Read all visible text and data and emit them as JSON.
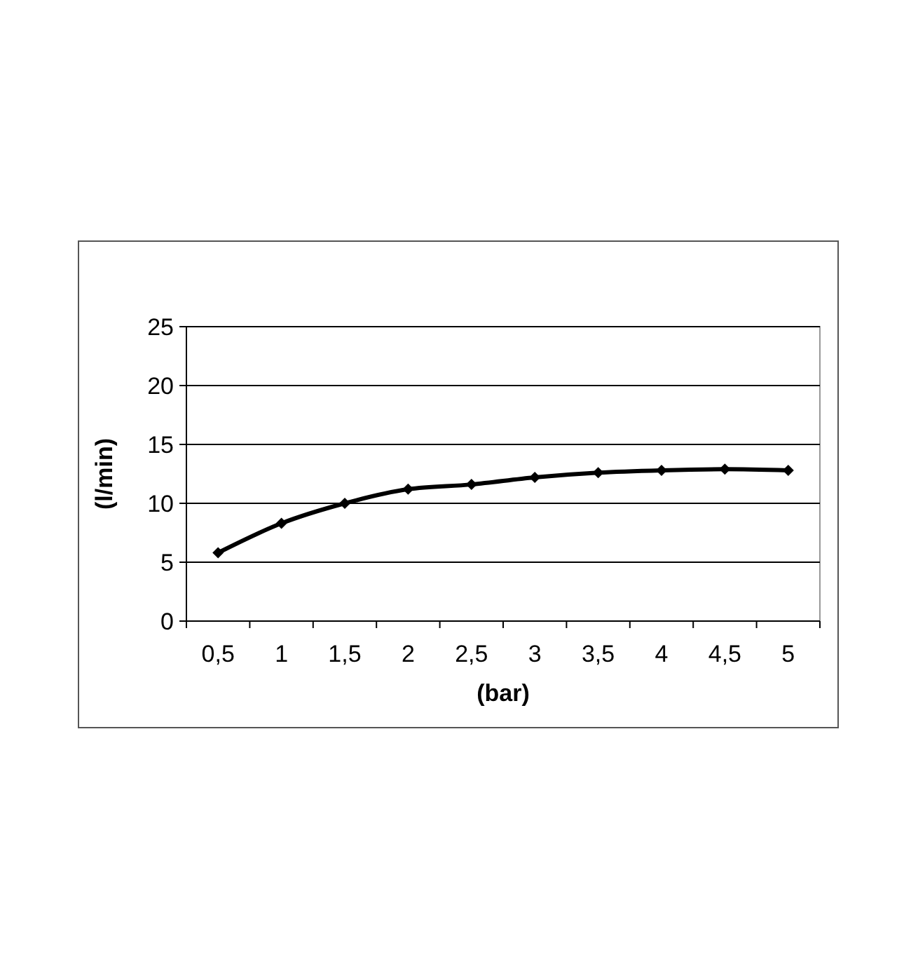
{
  "chart_data": {
    "type": "line",
    "xlabel": "(bar)",
    "ylabel": "(l/min)",
    "categories": [
      "0,5",
      "1",
      "1,5",
      "2",
      "2,5",
      "3",
      "3,5",
      "4",
      "4,5",
      "5"
    ],
    "series": [
      {
        "color": "#000000",
        "values": [
          5.8,
          8.3,
          10.0,
          11.2,
          11.6,
          12.2,
          12.6,
          12.8,
          12.9,
          12.8
        ]
      }
    ],
    "ylim": [
      0,
      25
    ],
    "yticks": [
      0,
      5,
      10,
      15,
      20,
      25
    ],
    "grid": "y",
    "marker": "diamond",
    "line_style": "solid"
  }
}
